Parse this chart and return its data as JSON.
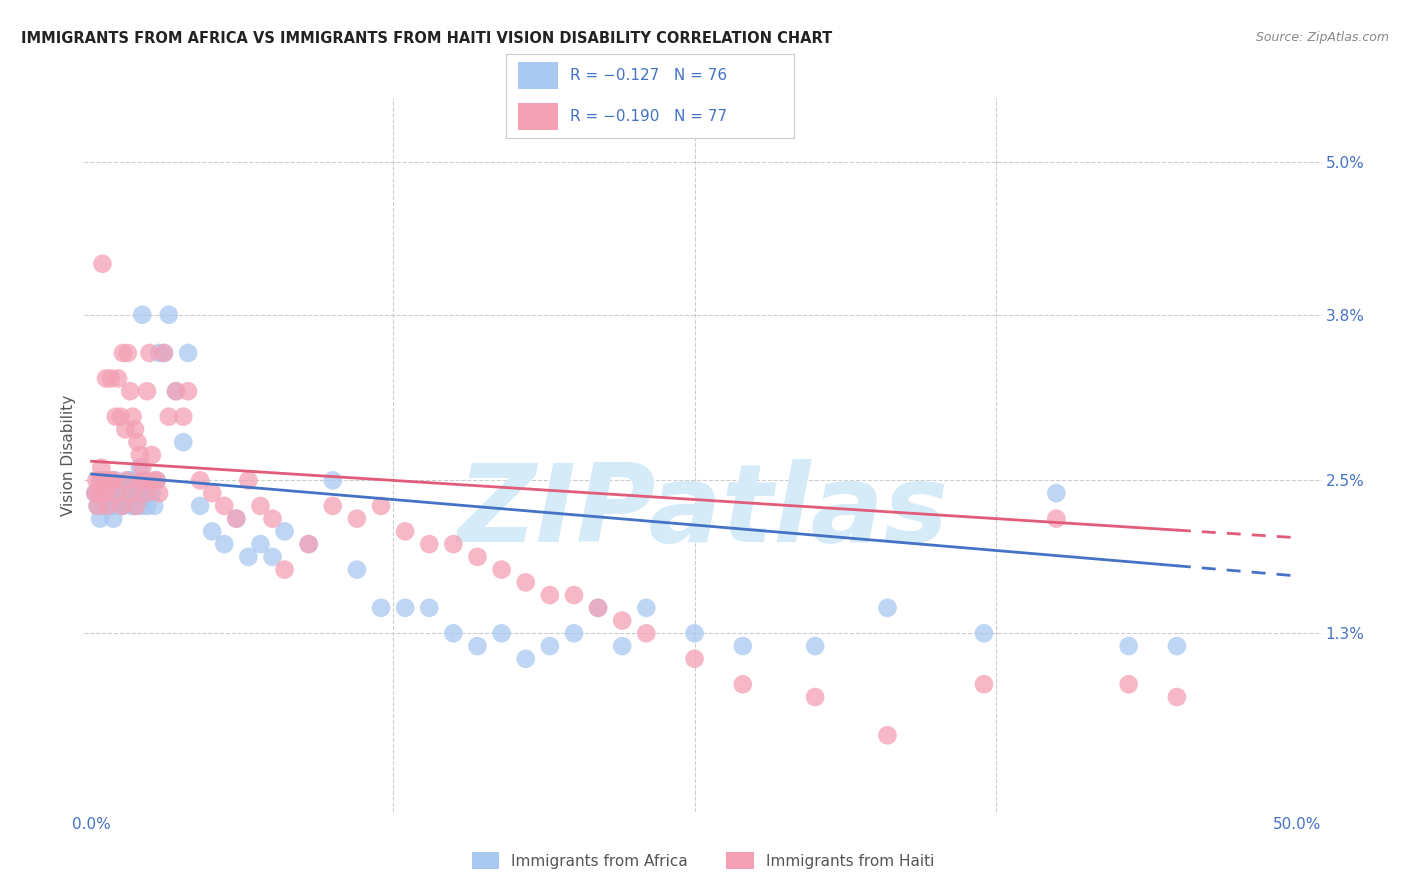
{
  "title": "IMMIGRANTS FROM AFRICA VS IMMIGRANTS FROM HAITI VISION DISABILITY CORRELATION CHART",
  "source": "Source: ZipAtlas.com",
  "ylabel": "Vision Disability",
  "ytick_vals": [
    0.0,
    1.3,
    2.5,
    3.8,
    5.0
  ],
  "ytick_labels": [
    "",
    "1.3%",
    "2.5%",
    "3.8%",
    "5.0%"
  ],
  "xlim": [
    -0.3,
    51.0
  ],
  "ylim": [
    -0.1,
    5.5
  ],
  "legend_r1": "−0.127",
  "legend_n1": "76",
  "legend_r2": "−0.190",
  "legend_n2": "77",
  "africa_color": "#A8C8F0",
  "haiti_color": "#F4A0B5",
  "africa_line_color": "#4472C4",
  "haiti_line_color": "#E05C78",
  "watermark_color": "#D5EBF8",
  "grid_color": "#CCCCCC",
  "title_color": "#222222",
  "source_color": "#888888",
  "tick_color": "#4472C4",
  "label_color": "#555555",
  "africa_x": [
    0.2,
    0.3,
    0.4,
    0.5,
    0.6,
    0.7,
    0.8,
    0.9,
    1.0,
    1.1,
    1.2,
    1.3,
    1.4,
    1.5,
    1.6,
    1.7,
    1.8,
    1.9,
    2.0,
    2.1,
    2.2,
    2.3,
    2.4,
    2.5,
    2.6,
    2.7,
    2.8,
    3.0,
    3.2,
    3.5,
    3.8,
    4.0,
    4.5,
    5.0,
    5.5,
    6.0,
    6.5,
    7.0,
    7.5,
    8.0,
    9.0,
    10.0,
    11.0,
    12.0,
    13.0,
    14.0,
    15.0,
    16.0,
    17.0,
    18.0,
    19.0,
    20.0,
    21.0,
    22.0,
    23.0,
    25.0,
    27.0,
    30.0,
    33.0,
    37.0,
    40.0,
    43.0,
    45.0,
    0.15,
    0.25,
    0.35,
    0.55,
    0.65,
    0.85,
    1.05,
    1.25,
    1.45,
    1.65,
    1.85,
    2.05,
    2.25
  ],
  "africa_y": [
    2.4,
    2.3,
    2.5,
    2.4,
    2.3,
    2.5,
    2.3,
    2.2,
    2.5,
    2.4,
    2.3,
    2.3,
    2.4,
    2.5,
    2.5,
    2.4,
    2.3,
    2.4,
    2.6,
    3.8,
    2.5,
    2.3,
    2.4,
    2.4,
    2.3,
    2.5,
    3.5,
    3.5,
    3.8,
    3.2,
    2.8,
    3.5,
    2.3,
    2.1,
    2.0,
    2.2,
    1.9,
    2.0,
    1.9,
    2.1,
    2.0,
    2.5,
    1.8,
    1.5,
    1.5,
    1.5,
    1.3,
    1.2,
    1.3,
    1.1,
    1.2,
    1.3,
    1.5,
    1.2,
    1.5,
    1.3,
    1.2,
    1.2,
    1.5,
    1.3,
    2.4,
    1.2,
    1.2,
    2.4,
    2.3,
    2.2,
    2.3,
    2.4,
    2.3,
    2.4,
    2.3,
    2.4,
    2.3,
    2.4,
    2.3,
    2.4
  ],
  "haiti_x": [
    0.2,
    0.3,
    0.4,
    0.5,
    0.6,
    0.7,
    0.8,
    0.9,
    1.0,
    1.1,
    1.2,
    1.3,
    1.4,
    1.5,
    1.6,
    1.7,
    1.8,
    1.9,
    2.0,
    2.1,
    2.2,
    2.3,
    2.4,
    2.5,
    2.6,
    2.7,
    2.8,
    3.0,
    3.2,
    3.5,
    3.8,
    4.0,
    4.5,
    5.0,
    5.5,
    6.0,
    6.5,
    7.0,
    7.5,
    8.0,
    9.0,
    10.0,
    11.0,
    12.0,
    13.0,
    14.0,
    15.0,
    16.0,
    17.0,
    18.0,
    19.0,
    20.0,
    21.0,
    22.0,
    23.0,
    25.0,
    27.0,
    30.0,
    33.0,
    37.0,
    40.0,
    43.0,
    45.0,
    0.15,
    0.25,
    0.35,
    0.55,
    0.65,
    0.85,
    1.05,
    1.25,
    1.45,
    1.65,
    1.85,
    2.05,
    2.25,
    0.45
  ],
  "haiti_y": [
    2.5,
    2.4,
    2.6,
    2.5,
    3.3,
    2.5,
    3.3,
    2.5,
    3.0,
    3.3,
    3.0,
    3.5,
    2.9,
    3.5,
    3.2,
    3.0,
    2.9,
    2.8,
    2.7,
    2.6,
    2.5,
    3.2,
    3.5,
    2.7,
    2.5,
    2.5,
    2.4,
    3.5,
    3.0,
    3.2,
    3.0,
    3.2,
    2.5,
    2.4,
    2.3,
    2.2,
    2.5,
    2.3,
    2.2,
    1.8,
    2.0,
    2.3,
    2.2,
    2.3,
    2.1,
    2.0,
    2.0,
    1.9,
    1.8,
    1.7,
    1.6,
    1.6,
    1.5,
    1.4,
    1.3,
    1.1,
    0.9,
    0.8,
    0.5,
    0.9,
    2.2,
    0.9,
    0.8,
    2.4,
    2.3,
    2.5,
    2.4,
    2.3,
    2.5,
    2.4,
    2.3,
    2.5,
    2.4,
    2.3,
    2.5,
    2.4,
    4.2
  ],
  "africa_line_start_x": 0.0,
  "africa_line_start_y": 2.55,
  "africa_line_end_x": 50.0,
  "africa_line_end_y": 1.75,
  "africa_solid_max_x": 45.0,
  "haiti_line_start_x": 0.0,
  "haiti_line_start_y": 2.65,
  "haiti_line_end_x": 50.0,
  "haiti_line_end_y": 2.05,
  "haiti_solid_max_x": 45.0
}
